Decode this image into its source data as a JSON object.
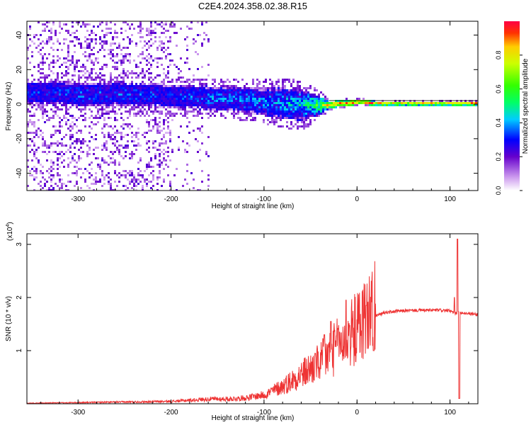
{
  "title": "C2E4.2024.358.02.38.R15",
  "colorbar": {
    "label": "Normalized spectral amplitude",
    "ticks": [
      "0.0",
      "0.2",
      "0.4",
      "0.6",
      "0.8"
    ],
    "tick_values": [
      0.0,
      0.2,
      0.4,
      0.6,
      0.8
    ],
    "range": [
      0,
      1
    ]
  },
  "chart_data": [
    {
      "type": "heatmap",
      "title": "C2E4.2024.358.02.38.R15",
      "xlabel": "Height of straight line (km)",
      "ylabel": "Frequency (Hz)",
      "xlim": [
        -355,
        130
      ],
      "ylim": [
        -50,
        48
      ],
      "x_ticks": [
        -300,
        -200,
        -100,
        0,
        100
      ],
      "y_ticks": [
        -40,
        -20,
        0,
        20,
        40
      ],
      "x_tick_labels": [
        "-300",
        "-200",
        "-100",
        "0",
        "100"
      ],
      "y_tick_labels": [
        "-40",
        "-20",
        "0",
        "20",
        "40"
      ],
      "description_trace": {
        "center_frequency": [
          [
            -350,
            7
          ],
          [
            -320,
            7
          ],
          [
            -300,
            6
          ],
          [
            -280,
            6
          ],
          [
            -260,
            7
          ],
          [
            -240,
            6
          ],
          [
            -220,
            6
          ],
          [
            -200,
            5
          ],
          [
            -180,
            5
          ],
          [
            -160,
            4
          ],
          [
            -140,
            4
          ],
          [
            -120,
            3
          ],
          [
            -100,
            2
          ],
          [
            -80,
            1
          ],
          [
            -60,
            0
          ],
          [
            -40,
            0
          ],
          [
            -30,
            0
          ],
          [
            -20,
            1
          ],
          [
            -10,
            1
          ],
          [
            0,
            2
          ],
          [
            20,
            1
          ],
          [
            40,
            1
          ],
          [
            60,
            1
          ],
          [
            80,
            1
          ],
          [
            100,
            1
          ],
          [
            130,
            1
          ]
        ],
        "spread_hz": [
          [
            -350,
            7
          ],
          [
            -300,
            7
          ],
          [
            -250,
            7
          ],
          [
            -200,
            7
          ],
          [
            -150,
            7
          ],
          [
            -100,
            8
          ],
          [
            -80,
            9
          ],
          [
            -60,
            9
          ],
          [
            -40,
            5
          ],
          [
            -30,
            2
          ],
          [
            0,
            1.5
          ],
          [
            50,
            1.2
          ],
          [
            130,
            1.2
          ]
        ],
        "intensity": [
          [
            -350,
            0.25
          ],
          [
            -300,
            0.3
          ],
          [
            -250,
            0.3
          ],
          [
            -200,
            0.25
          ],
          [
            -150,
            0.35
          ],
          [
            -100,
            0.35
          ],
          [
            -60,
            0.45
          ],
          [
            -40,
            0.6
          ],
          [
            -30,
            0.9
          ],
          [
            -10,
            0.95
          ],
          [
            0,
            0.9
          ],
          [
            50,
            0.85
          ],
          [
            100,
            0.9
          ],
          [
            130,
            0.95
          ]
        ]
      }
    },
    {
      "type": "line",
      "xlabel": "Height of straight line (km)",
      "ylabel": "SNR (10 * v/v)",
      "multiplier_label": "(x10",
      "multiplier_exponent": "4",
      "xlim": [
        -355,
        130
      ],
      "ylim": [
        0,
        3.2
      ],
      "x_ticks": [
        -300,
        -200,
        -100,
        0,
        100
      ],
      "y_ticks": [
        1,
        2,
        3
      ],
      "x_tick_labels": [
        "-300",
        "-200",
        "-100",
        "0",
        "100"
      ],
      "y_tick_labels": [
        "1",
        "2",
        "3"
      ],
      "series_color": "#ee3333",
      "envelope": [
        [
          -355,
          0.01
        ],
        [
          -300,
          0.02
        ],
        [
          -250,
          0.03
        ],
        [
          -200,
          0.04
        ],
        [
          -180,
          0.06
        ],
        [
          -160,
          0.08
        ],
        [
          -140,
          0.08
        ],
        [
          -120,
          0.1
        ],
        [
          -100,
          0.15
        ],
        [
          -80,
          0.3
        ],
        [
          -60,
          0.5
        ],
        [
          -40,
          0.7
        ],
        [
          -30,
          0.85
        ],
        [
          -20,
          1.0
        ],
        [
          -10,
          1.15
        ],
        [
          0,
          1.3
        ],
        [
          10,
          1.5
        ],
        [
          20,
          1.65
        ],
        [
          30,
          1.72
        ],
        [
          50,
          1.75
        ],
        [
          70,
          1.76
        ],
        [
          90,
          1.76
        ],
        [
          100,
          1.75
        ],
        [
          105,
          1.7
        ],
        [
          110,
          1.72
        ],
        [
          120,
          1.7
        ],
        [
          130,
          1.68
        ]
      ],
      "spikes": [
        [
          -45,
          0.95
        ],
        [
          -35,
          1.3
        ],
        [
          -28,
          1.55
        ],
        [
          -20,
          1.4
        ],
        [
          -12,
          1.95
        ],
        [
          -5,
          1.6
        ],
        [
          10,
          1.85
        ],
        [
          18,
          1.0
        ],
        [
          105,
          2.0
        ],
        [
          108,
          3.1
        ],
        [
          110,
          0.1
        ]
      ]
    }
  ]
}
